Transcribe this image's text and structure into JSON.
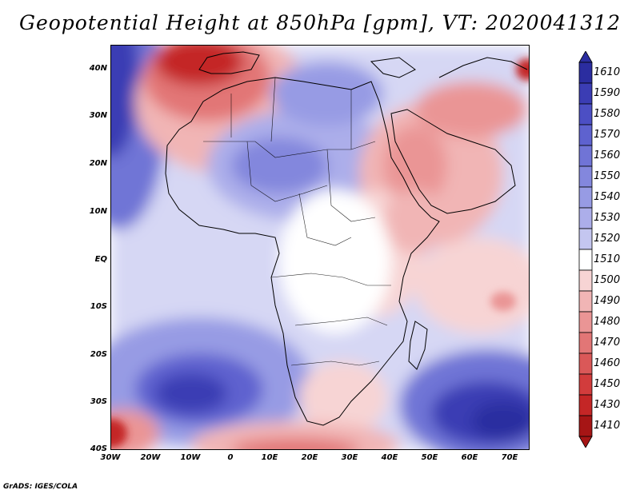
{
  "title": "Geopotential Height at 850hPa [gpm], VT: 2020041312",
  "y_axis": {
    "labels": [
      "40N",
      "30N",
      "20N",
      "10N",
      "EQ",
      "10S",
      "20S",
      "30S",
      "40S"
    ]
  },
  "x_axis": {
    "labels": [
      "30W",
      "20W",
      "10W",
      "0",
      "10E",
      "20E",
      "30E",
      "40E",
      "50E",
      "60E",
      "70E"
    ]
  },
  "colorbar": {
    "labels": [
      "1610",
      "1590",
      "1580",
      "1570",
      "1560",
      "1550",
      "1540",
      "1530",
      "1520",
      "1510",
      "1500",
      "1490",
      "1480",
      "1470",
      "1460",
      "1450",
      "1430",
      "1410"
    ],
    "colors": [
      "#2b2da0",
      "#3b3db4",
      "#4c4fc4",
      "#5e62cf",
      "#7074d6",
      "#8387dd",
      "#979be4",
      "#acaeea",
      "#c4c6f0",
      "#ffffff",
      "#f7d4d4",
      "#f1b5b5",
      "#ea9595",
      "#e27676",
      "#da5858",
      "#d23c3c",
      "#c42626",
      "#a61515"
    ]
  },
  "credit": "GrADS: IGES/COLA"
}
